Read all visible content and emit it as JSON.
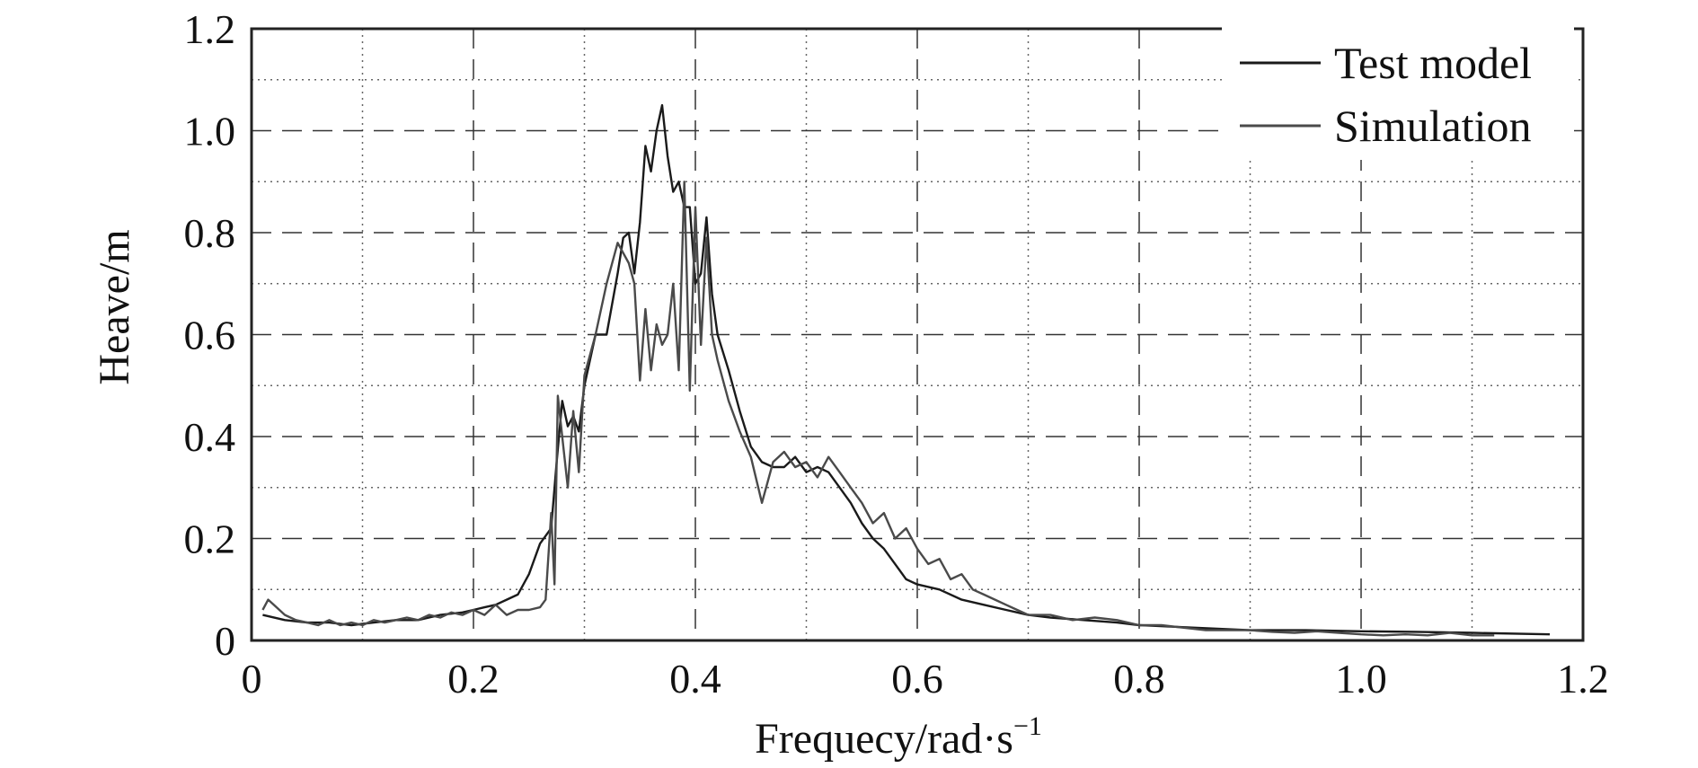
{
  "chart_data": {
    "type": "line",
    "xlabel": "Frequecy/rad·s",
    "xlabel_superscript": "−1",
    "ylabel": "Heave/m",
    "xlim": [
      0,
      1.2
    ],
    "ylim": [
      0,
      1.2
    ],
    "x_ticks": [
      0,
      0.2,
      0.4,
      0.6,
      0.8,
      1.0,
      1.2
    ],
    "x_tick_labels": [
      "0",
      "0.2",
      "0.4",
      "0.6",
      "0.8",
      "1.0",
      "1.2"
    ],
    "y_ticks": [
      0,
      0.2,
      0.4,
      0.6,
      0.8,
      1.0,
      1.2
    ],
    "y_tick_labels": [
      "0",
      "0.2",
      "0.4",
      "0.6",
      "0.8",
      "1.0",
      "1.2"
    ],
    "grid": {
      "major": "dashed",
      "minor": "dotted"
    },
    "legend_position": "top-right",
    "series": [
      {
        "name": "Test model",
        "color": "#1a1a1a",
        "x": [
          0.01,
          0.03,
          0.05,
          0.07,
          0.09,
          0.11,
          0.13,
          0.15,
          0.17,
          0.19,
          0.2,
          0.21,
          0.22,
          0.23,
          0.24,
          0.25,
          0.26,
          0.27,
          0.275,
          0.28,
          0.285,
          0.29,
          0.295,
          0.3,
          0.31,
          0.32,
          0.33,
          0.335,
          0.34,
          0.345,
          0.35,
          0.355,
          0.36,
          0.365,
          0.37,
          0.375,
          0.38,
          0.385,
          0.39,
          0.395,
          0.4,
          0.405,
          0.41,
          0.415,
          0.42,
          0.43,
          0.44,
          0.45,
          0.46,
          0.47,
          0.48,
          0.49,
          0.5,
          0.51,
          0.52,
          0.53,
          0.54,
          0.55,
          0.56,
          0.57,
          0.58,
          0.59,
          0.6,
          0.62,
          0.64,
          0.66,
          0.68,
          0.7,
          0.72,
          0.75,
          0.78,
          0.8,
          0.85,
          0.9,
          0.95,
          1.0,
          1.05,
          1.1,
          1.17
        ],
        "y": [
          0.05,
          0.04,
          0.035,
          0.035,
          0.03,
          0.035,
          0.04,
          0.04,
          0.05,
          0.055,
          0.06,
          0.065,
          0.07,
          0.08,
          0.09,
          0.13,
          0.19,
          0.22,
          0.35,
          0.47,
          0.42,
          0.44,
          0.41,
          0.5,
          0.6,
          0.6,
          0.72,
          0.79,
          0.8,
          0.72,
          0.82,
          0.97,
          0.92,
          1.0,
          1.05,
          0.95,
          0.88,
          0.9,
          0.85,
          0.85,
          0.7,
          0.72,
          0.83,
          0.68,
          0.6,
          0.53,
          0.45,
          0.38,
          0.35,
          0.34,
          0.34,
          0.36,
          0.33,
          0.34,
          0.33,
          0.3,
          0.27,
          0.23,
          0.2,
          0.18,
          0.15,
          0.12,
          0.11,
          0.1,
          0.08,
          0.07,
          0.06,
          0.05,
          0.045,
          0.04,
          0.035,
          0.03,
          0.025,
          0.02,
          0.02,
          0.018,
          0.017,
          0.015,
          0.012
        ]
      },
      {
        "name": "Simulation",
        "color": "#4a4a4a",
        "x": [
          0.01,
          0.015,
          0.02,
          0.03,
          0.04,
          0.05,
          0.06,
          0.07,
          0.08,
          0.09,
          0.1,
          0.11,
          0.12,
          0.13,
          0.14,
          0.15,
          0.16,
          0.17,
          0.18,
          0.19,
          0.2,
          0.21,
          0.22,
          0.23,
          0.24,
          0.25,
          0.26,
          0.265,
          0.27,
          0.273,
          0.276,
          0.28,
          0.285,
          0.29,
          0.295,
          0.3,
          0.31,
          0.32,
          0.33,
          0.34,
          0.345,
          0.35,
          0.355,
          0.36,
          0.365,
          0.37,
          0.375,
          0.38,
          0.385,
          0.39,
          0.395,
          0.4,
          0.405,
          0.41,
          0.415,
          0.42,
          0.43,
          0.44,
          0.45,
          0.46,
          0.47,
          0.48,
          0.49,
          0.5,
          0.51,
          0.52,
          0.53,
          0.54,
          0.55,
          0.56,
          0.57,
          0.58,
          0.59,
          0.6,
          0.61,
          0.62,
          0.63,
          0.64,
          0.65,
          0.66,
          0.67,
          0.68,
          0.69,
          0.7,
          0.72,
          0.74,
          0.76,
          0.78,
          0.8,
          0.82,
          0.84,
          0.86,
          0.88,
          0.9,
          0.92,
          0.94,
          0.96,
          0.98,
          1.0,
          1.02,
          1.04,
          1.06,
          1.08,
          1.1,
          1.12
        ],
        "y": [
          0.06,
          0.08,
          0.07,
          0.05,
          0.04,
          0.035,
          0.03,
          0.04,
          0.03,
          0.035,
          0.03,
          0.04,
          0.035,
          0.04,
          0.045,
          0.04,
          0.05,
          0.045,
          0.055,
          0.05,
          0.06,
          0.05,
          0.07,
          0.05,
          0.06,
          0.06,
          0.065,
          0.08,
          0.25,
          0.11,
          0.48,
          0.4,
          0.3,
          0.45,
          0.33,
          0.52,
          0.6,
          0.7,
          0.78,
          0.74,
          0.7,
          0.51,
          0.65,
          0.53,
          0.62,
          0.58,
          0.6,
          0.7,
          0.53,
          0.9,
          0.49,
          0.85,
          0.58,
          0.79,
          0.6,
          0.55,
          0.47,
          0.41,
          0.36,
          0.27,
          0.35,
          0.37,
          0.34,
          0.35,
          0.32,
          0.36,
          0.33,
          0.3,
          0.27,
          0.23,
          0.25,
          0.2,
          0.22,
          0.18,
          0.15,
          0.16,
          0.12,
          0.13,
          0.1,
          0.09,
          0.08,
          0.07,
          0.06,
          0.05,
          0.05,
          0.04,
          0.045,
          0.04,
          0.03,
          0.03,
          0.025,
          0.02,
          0.02,
          0.02,
          0.017,
          0.015,
          0.018,
          0.015,
          0.012,
          0.01,
          0.012,
          0.01,
          0.015,
          0.01,
          0.01
        ]
      }
    ]
  }
}
